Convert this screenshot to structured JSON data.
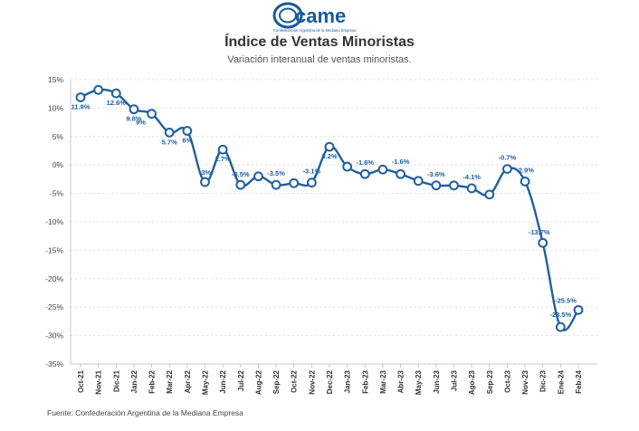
{
  "header": {
    "logo_text": "came",
    "logo_tagline": "Confederación Argentina de la Mediana Empresa"
  },
  "colors": {
    "series": "#1f5fa0",
    "grid": "#d8d8d8",
    "accent": "#1a5a9a"
  },
  "chart_data": {
    "type": "line",
    "title": "Índice de Ventas Minoristas",
    "subtitle": "Variación interanual de ventas minoristas.",
    "source": "Fuente: Confederación Argentina de la Mediana Empresa",
    "xlabel": "",
    "ylabel": "",
    "ylim": [
      -35,
      15
    ],
    "yticks": [
      15,
      10,
      5,
      0,
      -5,
      -10,
      -15,
      -20,
      -25,
      -30,
      -35
    ],
    "ytick_labels": [
      "15%",
      "10%",
      "5%",
      "0%",
      "-5%",
      "-10%",
      "-15%",
      "-20%",
      "-25%",
      "-30%",
      "-35%"
    ],
    "grid": true,
    "categories": [
      "Oct-21",
      "Nov-21",
      "Dic-21",
      "Jan-22",
      "Feb-22",
      "Mar-22",
      "Apr-22",
      "May-22",
      "Jun-22",
      "Jul-22",
      "Aug-22",
      "Sep-22",
      "Oct-22",
      "Nov-22",
      "Dec-22",
      "Jan-23",
      "Feb-23",
      "Mar-23",
      "Apr-23",
      "May-23",
      "Jun-23",
      "Jul-23",
      "Ago-23",
      "Sep-23",
      "Oct-23",
      "Nov-23",
      "Dic-23",
      "Ene-24",
      "Feb-24"
    ],
    "tick_labels": [
      "Oct-21",
      "Nov-21",
      "Dic-21",
      "Jan-22",
      "Feb-22",
      "Mar-22",
      "Apr-22",
      "May-22",
      "Jun-22",
      "Jul-22",
      "Aug-22",
      "Sep-22",
      "Oct-22",
      "Nov-22",
      "Dec-22",
      "Jan-23",
      "Feb-23",
      "Mar-23",
      "Abr-23",
      "May-23",
      "Jun-23",
      "Jul-23",
      "Ago-23",
      "Sep-23",
      "Oct-23",
      "Nov-23",
      "Dic-23",
      "Ene-24",
      "Feb-24"
    ],
    "values": [
      11.9,
      13.2,
      12.6,
      9.8,
      9.0,
      5.7,
      6.0,
      -3.0,
      2.7,
      -3.5,
      -2.0,
      -3.5,
      -3.2,
      -3.1,
      3.2,
      -0.3,
      -1.6,
      -0.8,
      -1.6,
      -2.8,
      -3.6,
      -3.6,
      -4.1,
      -5.2,
      -0.7,
      -2.9,
      -13.7,
      -28.5,
      -25.5
    ],
    "data_labels": [
      "11.9%",
      "",
      "12.6%",
      "9.8%",
      "9%",
      "5.7%",
      "6%",
      "-3%",
      "2.7%",
      "-3.5%",
      "",
      "-3.5%",
      "",
      "-3.1%",
      "3.2%",
      "",
      "-1.6%",
      "",
      "-1.6%",
      "",
      "-3.6%",
      "",
      "-4.1%",
      "",
      "-0.7%",
      "-2.9%",
      "-13.7%",
      "-28.5%",
      "-25.5%"
    ]
  }
}
